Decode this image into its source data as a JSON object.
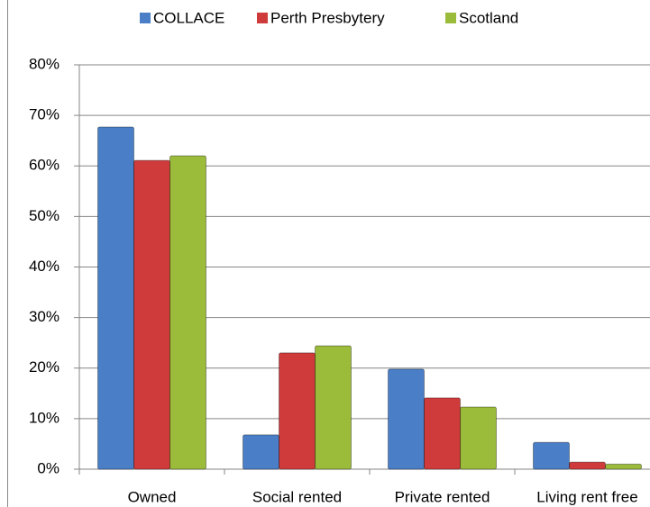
{
  "chart_data": {
    "type": "bar",
    "categories": [
      "Owned",
      "Social rented",
      "Private rented",
      "Living rent free"
    ],
    "series": [
      {
        "name": "COLLACE",
        "color": "#4a7fc8",
        "values": [
          67.7,
          6.8,
          19.8,
          5.3
        ]
      },
      {
        "name": "Perth Presbytery",
        "color": "#cf3b3b",
        "values": [
          61.1,
          23.0,
          14.1,
          1.4
        ]
      },
      {
        "name": "Scotland",
        "color": "#9bbb3a",
        "values": [
          62.0,
          24.4,
          12.3,
          1.0
        ]
      }
    ],
    "ylim": [
      0,
      80
    ],
    "yticks": [
      {
        "value": 0,
        "label": "0%"
      },
      {
        "value": 10,
        "label": "10%"
      },
      {
        "value": 20,
        "label": "20%"
      },
      {
        "value": 30,
        "label": "30%"
      },
      {
        "value": 40,
        "label": "40%"
      },
      {
        "value": 50,
        "label": "50%"
      },
      {
        "value": 60,
        "label": "60%"
      },
      {
        "value": 70,
        "label": "70%"
      },
      {
        "value": 80,
        "label": "80%"
      }
    ],
    "grid": true,
    "legend": "top"
  }
}
